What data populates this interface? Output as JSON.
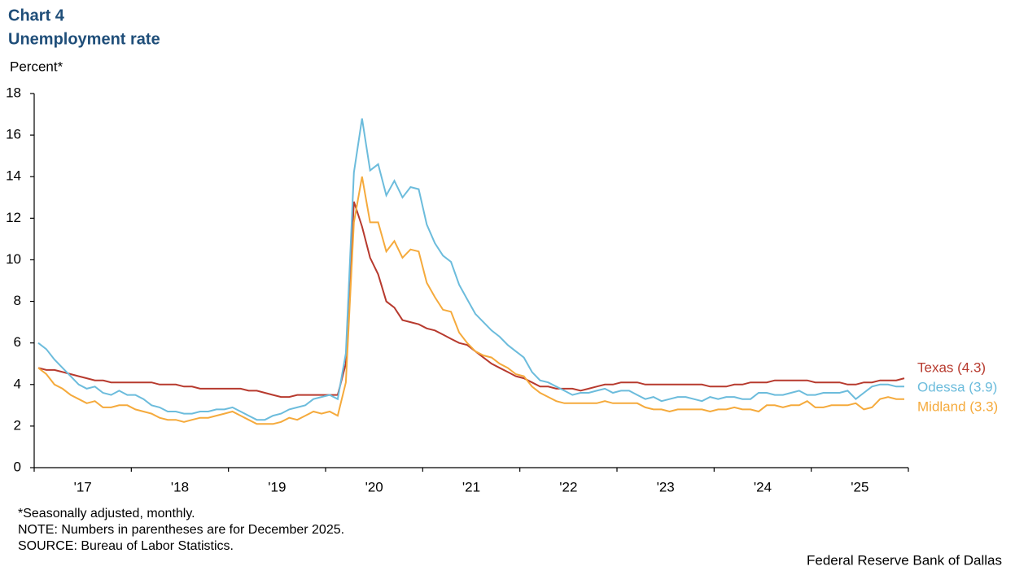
{
  "chart_data": {
    "type": "line",
    "title": "Chart 4",
    "subtitle": "Unemployment rate",
    "y_label": "Percent*",
    "notes": [
      "*Seasonally adjusted, monthly.",
      "NOTE: Numbers in parentheses are for December 2025.",
      "SOURCE: Bureau of Labor Statistics."
    ],
    "credit": "Federal Reserve Bank of Dallas",
    "categories": [
      null,
      null,
      null,
      null,
      null,
      null,
      "'17",
      null,
      null,
      null,
      null,
      null,
      null,
      null,
      null,
      null,
      null,
      null,
      "'18",
      null,
      null,
      null,
      null,
      null,
      null,
      null,
      null,
      null,
      null,
      null,
      "'19",
      null,
      null,
      null,
      null,
      null,
      null,
      null,
      null,
      null,
      null,
      null,
      "'20",
      null,
      null,
      null,
      null,
      null,
      null,
      null,
      null,
      null,
      null,
      null,
      "'21",
      null,
      null,
      null,
      null,
      null,
      null,
      null,
      null,
      null,
      null,
      null,
      "'22",
      null,
      null,
      null,
      null,
      null,
      null,
      null,
      null,
      null,
      null,
      null,
      "'23",
      null,
      null,
      null,
      null,
      null,
      null,
      null,
      null,
      null,
      null,
      null,
      "'24",
      null,
      null,
      null,
      null,
      null,
      null,
      null,
      null,
      null,
      null,
      null,
      "'25",
      null,
      null,
      null,
      null,
      null
    ],
    "ylim": [
      0,
      18
    ],
    "yticks": [
      0,
      2,
      4,
      6,
      8,
      10,
      12,
      14,
      16,
      18
    ],
    "grid": false,
    "series": [
      {
        "name": "Texas (4.3)",
        "color": "#b73a2e",
        "values": [
          4.8,
          4.7,
          4.7,
          4.6,
          4.5,
          4.4,
          4.3,
          4.2,
          4.2,
          4.1,
          4.1,
          4.1,
          4.1,
          4.1,
          4.1,
          4.0,
          4.0,
          4.0,
          3.9,
          3.9,
          3.8,
          3.8,
          3.8,
          3.8,
          3.8,
          3.8,
          3.7,
          3.7,
          3.6,
          3.5,
          3.4,
          3.4,
          3.5,
          3.5,
          3.5,
          3.5,
          3.5,
          3.5,
          5.0,
          12.8,
          11.6,
          10.1,
          9.3,
          8.0,
          7.7,
          7.1,
          7.0,
          6.9,
          6.7,
          6.6,
          6.4,
          6.2,
          6.0,
          5.9,
          5.6,
          5.3,
          5.0,
          4.8,
          4.6,
          4.4,
          4.3,
          4.1,
          3.9,
          3.9,
          3.8,
          3.8,
          3.8,
          3.7,
          3.8,
          3.9,
          4.0,
          4.0,
          4.1,
          4.1,
          4.1,
          4.0,
          4.0,
          4.0,
          4.0,
          4.0,
          4.0,
          4.0,
          4.0,
          3.9,
          3.9,
          3.9,
          4.0,
          4.0,
          4.1,
          4.1,
          4.1,
          4.2,
          4.2,
          4.2,
          4.2,
          4.2,
          4.1,
          4.1,
          4.1,
          4.1,
          4.0,
          4.0,
          4.1,
          4.1,
          4.2,
          4.2,
          4.2,
          4.3
        ]
      },
      {
        "name": "Odessa (3.9)",
        "color": "#6cbcdc",
        "values": [
          6.0,
          5.7,
          5.2,
          4.8,
          4.4,
          4.0,
          3.8,
          3.9,
          3.6,
          3.5,
          3.7,
          3.5,
          3.5,
          3.3,
          3.0,
          2.9,
          2.7,
          2.7,
          2.6,
          2.6,
          2.7,
          2.7,
          2.8,
          2.8,
          2.9,
          2.7,
          2.5,
          2.3,
          2.3,
          2.5,
          2.6,
          2.8,
          2.9,
          3.0,
          3.3,
          3.4,
          3.5,
          3.3,
          5.5,
          14.2,
          16.8,
          14.3,
          14.6,
          13.1,
          13.8,
          13.0,
          13.5,
          13.4,
          11.7,
          10.8,
          10.2,
          9.9,
          8.8,
          8.1,
          7.4,
          7.0,
          6.6,
          6.3,
          5.9,
          5.6,
          5.3,
          4.6,
          4.2,
          4.1,
          3.9,
          3.7,
          3.5,
          3.6,
          3.6,
          3.7,
          3.8,
          3.6,
          3.7,
          3.7,
          3.5,
          3.3,
          3.4,
          3.2,
          3.3,
          3.4,
          3.4,
          3.3,
          3.2,
          3.4,
          3.3,
          3.4,
          3.4,
          3.3,
          3.3,
          3.6,
          3.6,
          3.5,
          3.5,
          3.6,
          3.7,
          3.5,
          3.5,
          3.6,
          3.6,
          3.6,
          3.7,
          3.3,
          3.6,
          3.9,
          4.0,
          4.0,
          3.9,
          3.9
        ]
      },
      {
        "name": "Midland (3.3)",
        "color": "#f5aa3c",
        "values": [
          4.8,
          4.5,
          4.0,
          3.8,
          3.5,
          3.3,
          3.1,
          3.2,
          2.9,
          2.9,
          3.0,
          3.0,
          2.8,
          2.7,
          2.6,
          2.4,
          2.3,
          2.3,
          2.2,
          2.3,
          2.4,
          2.4,
          2.5,
          2.6,
          2.7,
          2.5,
          2.3,
          2.1,
          2.1,
          2.1,
          2.2,
          2.4,
          2.3,
          2.5,
          2.7,
          2.6,
          2.7,
          2.5,
          4.1,
          11.8,
          14.0,
          11.8,
          11.8,
          10.4,
          10.9,
          10.1,
          10.5,
          10.4,
          8.9,
          8.2,
          7.6,
          7.5,
          6.5,
          6.0,
          5.6,
          5.4,
          5.3,
          5.0,
          4.8,
          4.5,
          4.4,
          3.9,
          3.6,
          3.4,
          3.2,
          3.1,
          3.1,
          3.1,
          3.1,
          3.1,
          3.2,
          3.1,
          3.1,
          3.1,
          3.1,
          2.9,
          2.8,
          2.8,
          2.7,
          2.8,
          2.8,
          2.8,
          2.8,
          2.7,
          2.8,
          2.8,
          2.9,
          2.8,
          2.8,
          2.7,
          3.0,
          3.0,
          2.9,
          3.0,
          3.0,
          3.2,
          2.9,
          2.9,
          3.0,
          3.0,
          3.0,
          3.1,
          2.8,
          2.9,
          3.3,
          3.4,
          3.3,
          3.3
        ]
      }
    ]
  }
}
